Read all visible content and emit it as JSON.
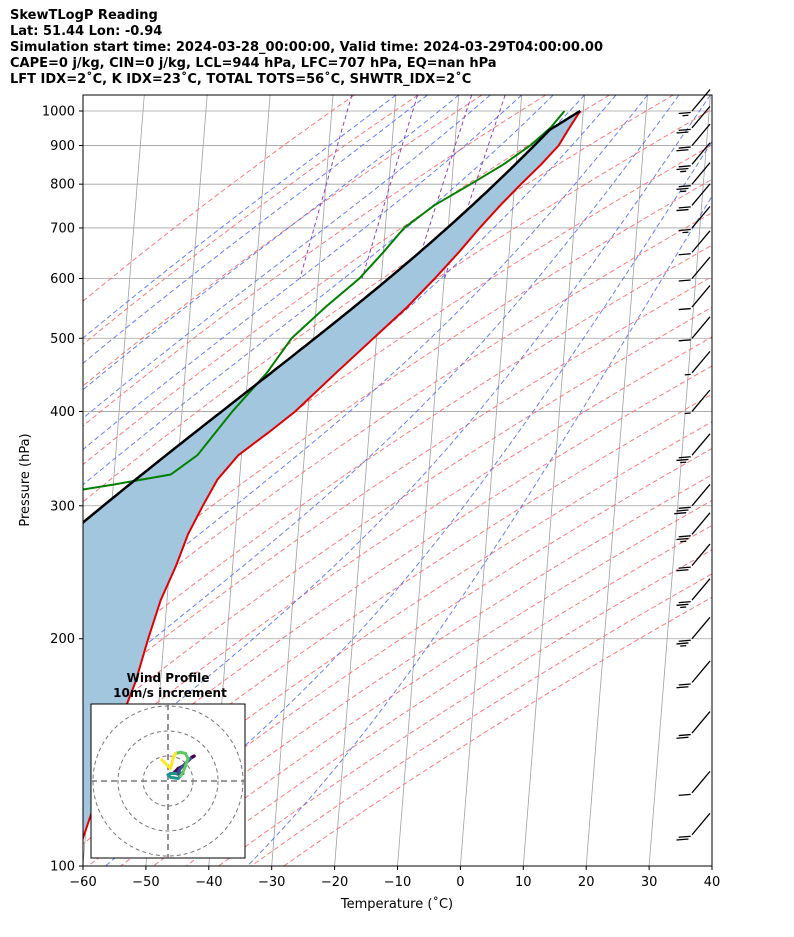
{
  "header": {
    "line1": "SkewTLogP Reading",
    "line2": "Lat: 51.44   Lon: -0.94",
    "line3": "Simulation start time: 2024-03-28_00:00:00, Valid time: 2024-03-29T04:00:00.00",
    "line4": "CAPE=0 j/kg, CIN=0 j/kg, LCL=944 hPa, LFC=707 hPa, EQ=nan hPa",
    "line5": "LFT IDX=2˚C, K IDX=23˚C, TOTAL TOTS=56˚C, SHWTR_IDX=2˚C"
  },
  "chart_data": {
    "type": "skew-t",
    "xlabel": "Temperature (˚C)",
    "ylabel": "Pressure (hPa)",
    "xlim": [
      -60,
      40
    ],
    "ylim": [
      1050,
      100
    ],
    "x_ticks": [
      "−60",
      "−50",
      "−40",
      "−30",
      "−20",
      "−10",
      "0",
      "10",
      "20",
      "30",
      "40"
    ],
    "y_ticks": [
      "100",
      "200",
      "300",
      "400",
      "500",
      "600",
      "700",
      "800",
      "900",
      "1000"
    ],
    "grid": true,
    "colors": {
      "temperature": "#e00000",
      "dewpoint": "#008000",
      "parcel": "#000000",
      "shade": "#a3c6df",
      "dry_adiabat": "#ff6060",
      "moist_adiabat": "#4060ff",
      "mixing_ratio": "#9040c0",
      "isotherm": "#a0a0a0"
    },
    "temperature_profile": [
      {
        "p": 1000,
        "t": 9.5
      },
      {
        "p": 950,
        "t": 8.0
      },
      {
        "p": 900,
        "t": 6.5
      },
      {
        "p": 850,
        "t": 4.0
      },
      {
        "p": 800,
        "t": 1.0
      },
      {
        "p": 750,
        "t": -2.0
      },
      {
        "p": 700,
        "t": -5.0
      },
      {
        "p": 650,
        "t": -8.0
      },
      {
        "p": 600,
        "t": -11.5
      },
      {
        "p": 550,
        "t": -15.5
      },
      {
        "p": 500,
        "t": -20.5
      },
      {
        "p": 450,
        "t": -26.0
      },
      {
        "p": 400,
        "t": -32.0
      },
      {
        "p": 375,
        "t": -36.0
      },
      {
        "p": 350,
        "t": -40.5
      },
      {
        "p": 325,
        "t": -43.5
      },
      {
        "p": 300,
        "t": -45.5
      },
      {
        "p": 275,
        "t": -47.5
      },
      {
        "p": 250,
        "t": -49.0
      },
      {
        "p": 225,
        "t": -51.0
      },
      {
        "p": 200,
        "t": -52.5
      },
      {
        "p": 175,
        "t": -54.0
      },
      {
        "p": 150,
        "t": -56.5
      },
      {
        "p": 125,
        "t": -58.5
      },
      {
        "p": 100,
        "t": -61.5
      }
    ],
    "dewpoint_profile": [
      {
        "p": 1000,
        "t": 7.0
      },
      {
        "p": 950,
        "t": 5.0
      },
      {
        "p": 900,
        "t": 2.0
      },
      {
        "p": 850,
        "t": -2.0
      },
      {
        "p": 800,
        "t": -7.0
      },
      {
        "p": 750,
        "t": -12.5
      },
      {
        "p": 700,
        "t": -17.0
      },
      {
        "p": 650,
        "t": -20.0
      },
      {
        "p": 600,
        "t": -23.5
      },
      {
        "p": 550,
        "t": -28.5
      },
      {
        "p": 500,
        "t": -33.5
      },
      {
        "p": 450,
        "t": -37.0
      },
      {
        "p": 400,
        "t": -42.0
      },
      {
        "p": 350,
        "t": -47.0
      },
      {
        "p": 330,
        "t": -51.0
      },
      {
        "p": 320,
        "t": -60.0
      },
      {
        "p": 310,
        "t": -70.0
      },
      {
        "p": 290,
        "t": -70.5
      },
      {
        "p": 270,
        "t": -68.0
      },
      {
        "p": 250,
        "t": -71.0
      },
      {
        "p": 225,
        "t": -74.0
      },
      {
        "p": 200,
        "t": -76.0
      },
      {
        "p": 175,
        "t": -77.0
      },
      {
        "p": 150,
        "t": -77.5
      },
      {
        "p": 125,
        "t": -78.0
      },
      {
        "p": 100,
        "t": -79.5
      }
    ],
    "wind_barbs": [
      {
        "p": 1000,
        "speed_kt": 15
      },
      {
        "p": 950,
        "speed_kt": 20
      },
      {
        "p": 900,
        "speed_kt": 20
      },
      {
        "p": 850,
        "speed_kt": 25
      },
      {
        "p": 800,
        "speed_kt": 25
      },
      {
        "p": 750,
        "speed_kt": 20
      },
      {
        "p": 700,
        "speed_kt": 15
      },
      {
        "p": 650,
        "speed_kt": 10
      },
      {
        "p": 600,
        "speed_kt": 10
      },
      {
        "p": 550,
        "speed_kt": 10
      },
      {
        "p": 500,
        "speed_kt": 10
      },
      {
        "p": 450,
        "speed_kt": 5
      },
      {
        "p": 400,
        "speed_kt": 5
      },
      {
        "p": 350,
        "speed_kt": 25
      },
      {
        "p": 300,
        "speed_kt": 30
      },
      {
        "p": 275,
        "speed_kt": 25
      },
      {
        "p": 250,
        "speed_kt": 20
      },
      {
        "p": 225,
        "speed_kt": 25
      },
      {
        "p": 200,
        "speed_kt": 25
      },
      {
        "p": 175,
        "speed_kt": 20
      },
      {
        "p": 150,
        "speed_kt": 20
      },
      {
        "p": 125,
        "speed_kt": 10
      },
      {
        "p": 110,
        "speed_kt": 20
      }
    ],
    "hodograph": {
      "title": "Wind Profile",
      "subtitle": "10m/s increment",
      "points": [
        [
          2.0,
          3.0
        ],
        [
          4.0,
          5.0
        ],
        [
          6.0,
          6.0
        ],
        [
          8.0,
          8.0
        ],
        [
          9.5,
          9.5
        ],
        [
          10.5,
          10.0
        ],
        [
          9.0,
          9.0
        ],
        [
          7.0,
          7.0
        ],
        [
          5.0,
          5.0
        ],
        [
          4.0,
          3.5
        ],
        [
          6.0,
          3.0
        ],
        [
          5.0,
          2.5
        ],
        [
          3.0,
          3.0
        ],
        [
          1.0,
          3.0
        ],
        [
          0.0,
          2.5
        ],
        [
          1.0,
          1.5
        ],
        [
          4.0,
          1.0
        ],
        [
          5.0,
          2.0
        ],
        [
          6.0,
          3.5
        ],
        [
          7.0,
          6.0
        ],
        [
          8.0,
          9.0
        ],
        [
          7.0,
          11.0
        ],
        [
          5.0,
          11.5
        ],
        [
          3.0,
          11.0
        ],
        [
          2.0,
          9.0
        ],
        [
          1.5,
          7.0
        ],
        [
          1.0,
          5.0
        ],
        [
          -1.0,
          7.0
        ],
        [
          -2.5,
          8.5
        ]
      ]
    }
  }
}
